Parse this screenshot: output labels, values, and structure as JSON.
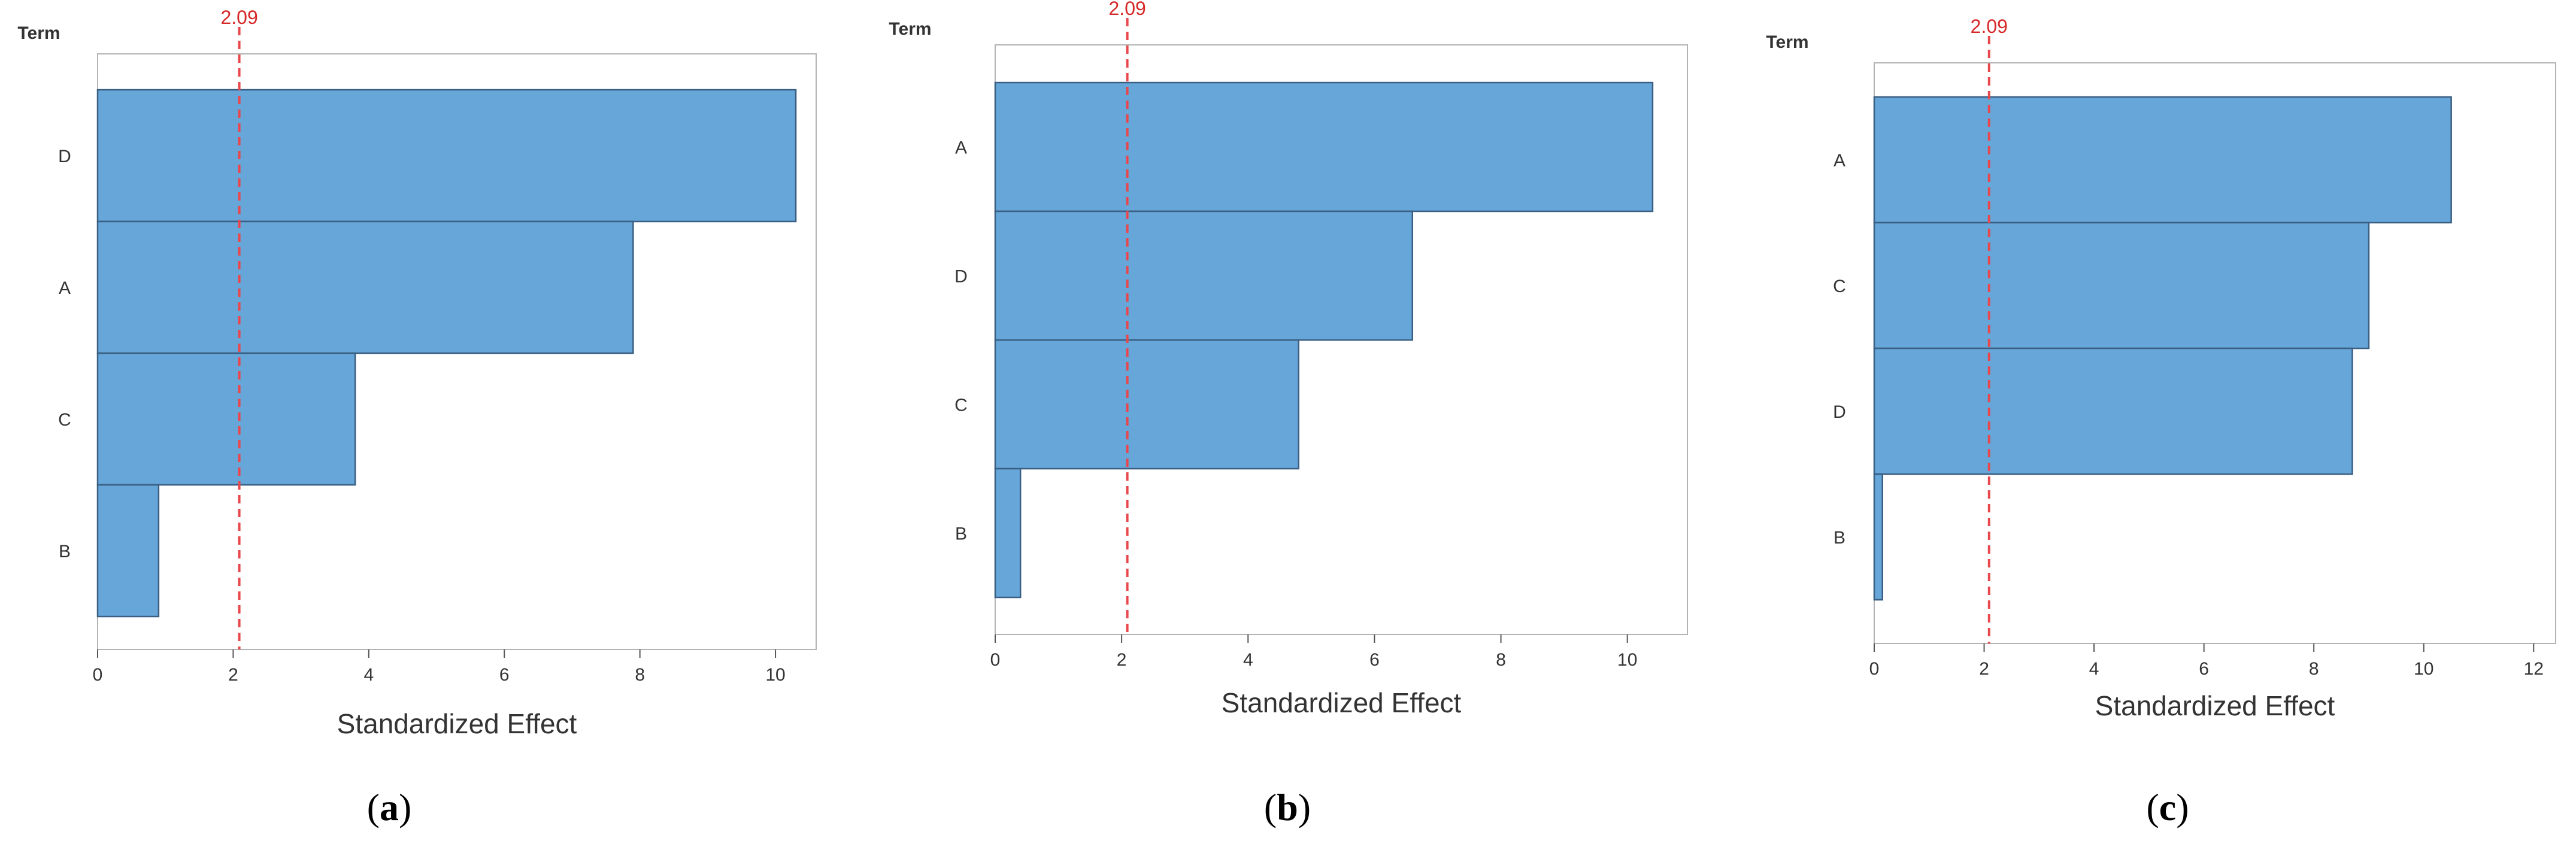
{
  "chart_data": [
    {
      "type": "bar",
      "orientation": "horizontal",
      "caption_open": "(",
      "caption_letter": "a",
      "caption_close": ")",
      "ylabel": "Term",
      "xlabel": "Standardized Effect",
      "categories": [
        "D",
        "A",
        "C",
        "B"
      ],
      "values": [
        10.3,
        7.9,
        3.8,
        0.9
      ],
      "reference_line": {
        "value": 2.09,
        "label": "2.09",
        "color": "#e8474c"
      },
      "xlim": [
        0,
        10.6
      ],
      "xticks": [
        "0",
        "2",
        "4",
        "6",
        "8",
        "10"
      ],
      "bar_color": "#66a6d9"
    },
    {
      "type": "bar",
      "orientation": "horizontal",
      "caption_open": "(",
      "caption_letter": "b",
      "caption_close": ")",
      "ylabel": "Term",
      "xlabel": "Standardized Effect",
      "categories": [
        "A",
        "D",
        "C",
        "B"
      ],
      "values": [
        10.4,
        6.6,
        4.8,
        0.4
      ],
      "reference_line": {
        "value": 2.09,
        "label": "2.09",
        "color": "#e8474c"
      },
      "xlim": [
        0,
        10.95
      ],
      "xticks": [
        "0",
        "2",
        "4",
        "6",
        "8",
        "10"
      ],
      "bar_color": "#66a6d9"
    },
    {
      "type": "bar",
      "orientation": "horizontal",
      "caption_open": "(",
      "caption_letter": "c",
      "caption_close": ")",
      "ylabel": "Term",
      "xlabel": "Standardized Effect",
      "categories": [
        "A",
        "C",
        "D",
        "B"
      ],
      "values": [
        10.5,
        9.0,
        8.7,
        0.15
      ],
      "reference_line": {
        "value": 2.09,
        "label": "2.09",
        "color": "#e8474c"
      },
      "xlim": [
        0,
        12.4
      ],
      "xticks": [
        "0",
        "2",
        "4",
        "6",
        "8",
        "10",
        "12"
      ],
      "bar_color": "#66a6d9"
    }
  ]
}
